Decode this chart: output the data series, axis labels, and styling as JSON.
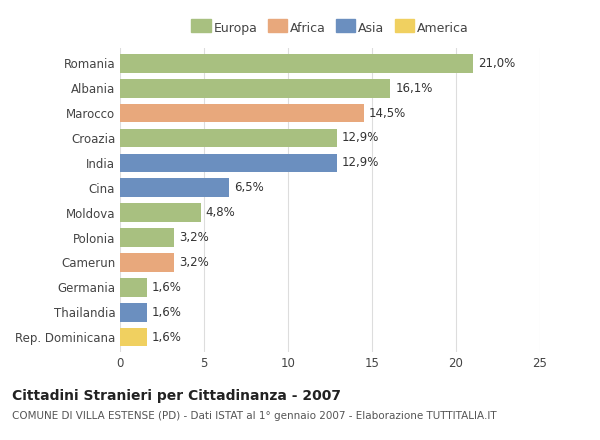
{
  "categories": [
    "Romania",
    "Albania",
    "Marocco",
    "Croazia",
    "India",
    "Cina",
    "Moldova",
    "Polonia",
    "Camerun",
    "Germania",
    "Thailandia",
    "Rep. Dominicana"
  ],
  "values": [
    21.0,
    16.1,
    14.5,
    12.9,
    12.9,
    6.5,
    4.8,
    3.2,
    3.2,
    1.6,
    1.6,
    1.6
  ],
  "labels": [
    "21,0%",
    "16,1%",
    "14,5%",
    "12,9%",
    "12,9%",
    "6,5%",
    "4,8%",
    "3,2%",
    "3,2%",
    "1,6%",
    "1,6%",
    "1,6%"
  ],
  "continents": [
    "Europa",
    "Europa",
    "Africa",
    "Europa",
    "Asia",
    "Asia",
    "Europa",
    "Europa",
    "Africa",
    "Europa",
    "Asia",
    "America"
  ],
  "colors": {
    "Europa": "#a8c080",
    "Africa": "#e8a87c",
    "Asia": "#6b8fbf",
    "America": "#f0d060"
  },
  "legend_order": [
    "Europa",
    "Africa",
    "Asia",
    "America"
  ],
  "xlim": [
    0,
    25
  ],
  "xticks": [
    0,
    5,
    10,
    15,
    20,
    25
  ],
  "title": "Cittadini Stranieri per Cittadinanza - 2007",
  "subtitle": "COMUNE DI VILLA ESTENSE (PD) - Dati ISTAT al 1° gennaio 2007 - Elaborazione TUTTITALIA.IT",
  "background_color": "#ffffff",
  "grid_color": "#dddddd",
  "bar_height": 0.75,
  "title_fontsize": 10,
  "subtitle_fontsize": 7.5,
  "tick_fontsize": 8.5,
  "label_fontsize": 8.5,
  "legend_fontsize": 9
}
